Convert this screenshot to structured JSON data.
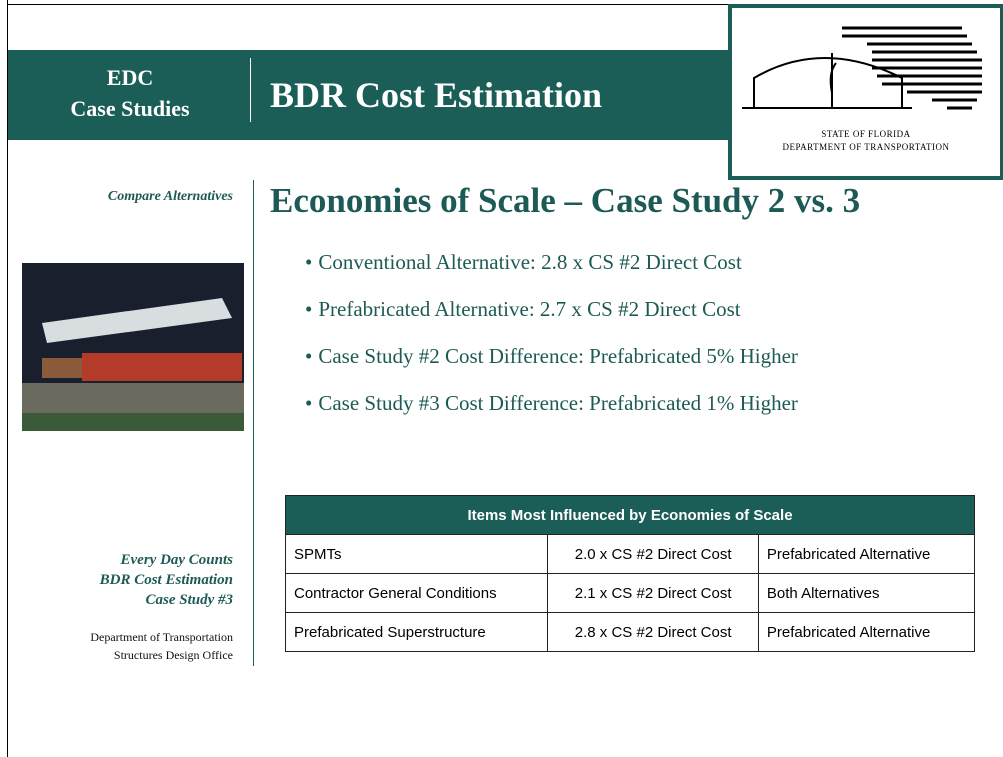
{
  "header": {
    "section": [
      "EDC",
      "Case Studies"
    ],
    "title": "BDR Cost Estimation"
  },
  "logo": {
    "lines": [
      "STATE OF FLORIDA",
      "DEPARTMENT OF TRANSPORTATION"
    ]
  },
  "sidebar": {
    "topic": "Compare Alternatives",
    "case_study": [
      "Every Day Counts",
      "BDR Cost Estimation",
      "Case Study #3"
    ],
    "office": [
      "Department of Transportation",
      "Structures Design Office"
    ]
  },
  "heading": "Economies of Scale – Case Study 2 vs. 3",
  "bullets": [
    "Conventional Alternative:  2.8 x CS #2 Direct Cost",
    "Prefabricated Alternative:  2.7 x CS #2 Direct Cost",
    "Case Study #2 Cost Difference:  Prefabricated 5% Higher",
    "Case Study #3 Cost Difference:  Prefabricated 1% Higher"
  ],
  "table": {
    "title": "Items Most Influenced by Economies of Scale",
    "rows": [
      [
        "SPMTs",
        "2.0 x CS #2 Direct Cost",
        "Prefabricated Alternative"
      ],
      [
        "Contractor General Conditions",
        "2.1 x CS #2 Direct Cost",
        "Both Alternatives"
      ],
      [
        "Prefabricated Superstructure",
        "2.8 x CS #2 Direct Cost",
        "Prefabricated Alternative"
      ]
    ]
  }
}
